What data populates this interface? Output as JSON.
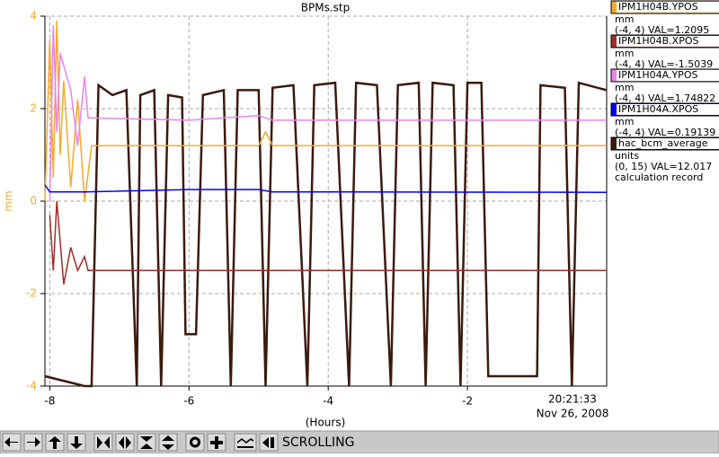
{
  "chart_data": {
    "type": "line",
    "title": "BPMs.stp",
    "xlabel": "(Hours)",
    "ylabel": "mm",
    "time_label": "20:21:33",
    "date_label": "Nov 26, 2008",
    "xlim": [
      -8.07,
      0
    ],
    "xticks": [
      -8,
      -6,
      -4,
      -2
    ],
    "ylim": [
      -4,
      4
    ],
    "yticks": [
      -4,
      -2,
      0,
      2,
      4
    ],
    "y2lim": [
      0,
      15
    ],
    "grid": true,
    "series": [
      {
        "name": "IPM1H04B.YPOS",
        "units": "mm",
        "info": "(-4, 4) VAL=1.2095",
        "color": "#f7a92a",
        "x": [
          -8.07,
          -8.0,
          -7.95,
          -7.9,
          -7.85,
          -7.8,
          -7.7,
          -7.6,
          -7.5,
          -7.4,
          -5.0,
          -4.9,
          -4.8,
          0
        ],
        "values": [
          0,
          3.5,
          0.5,
          3.9,
          1,
          2.6,
          0.3,
          2.2,
          0,
          1.2,
          1.2,
          1.5,
          1.2,
          1.2
        ]
      },
      {
        "name": "IPM1H04B.XPOS",
        "units": "mm",
        "info": "(-4, 4) VAL=-1.5039",
        "color": "#a52a2a",
        "x": [
          -8.0,
          -7.95,
          -7.9,
          -7.8,
          -7.7,
          -7.6,
          -7.5,
          -7.45,
          0
        ],
        "values": [
          -0.3,
          -1.5,
          0,
          -1.8,
          -1,
          -1.5,
          -1.2,
          -1.5,
          -1.5
        ]
      },
      {
        "name": "IPM1H04A.YPOS",
        "units": "mm",
        "info": "(-4, 4) VAL=1.74822",
        "color": "#ee82ee",
        "x": [
          -8.0,
          -7.95,
          -7.9,
          -7.85,
          -7.7,
          -7.6,
          -7.5,
          -7.45,
          -6.0,
          -5.0,
          -4.8,
          0
        ],
        "values": [
          0,
          3.8,
          1.5,
          3.2,
          2.4,
          1.2,
          2.7,
          1.8,
          1.75,
          1.85,
          1.75,
          1.75
        ]
      },
      {
        "name": "IPM1H04A.XPOS",
        "units": "mm",
        "info": "(-4, 4) VAL=0.19139",
        "color": "#0000ff",
        "x": [
          -8.07,
          -8.0,
          -7.5,
          -6.0,
          -5.0,
          -4.8,
          0
        ],
        "values": [
          0.35,
          0.2,
          0.2,
          0.25,
          0.25,
          0.2,
          0.19
        ]
      },
      {
        "name": "hac_bcm_average",
        "units": "units",
        "info": "(0, 15) VAL=12.017",
        "note": "calculation record",
        "color": "#3b1a0e",
        "axis": "y2",
        "x": [
          -8.07,
          -7.5,
          -7.4,
          -7.3,
          -7.1,
          -6.9,
          -6.75,
          -6.7,
          -6.5,
          -6.4,
          -6.3,
          -6.1,
          -6.05,
          -5.9,
          -5.8,
          -5.5,
          -5.4,
          -5.3,
          -5.0,
          -4.9,
          -4.8,
          -4.5,
          -4.3,
          -4.2,
          -3.9,
          -3.7,
          -3.6,
          -3.3,
          -3.1,
          -3.0,
          -2.7,
          -2.6,
          -2.5,
          -2.2,
          -2.1,
          -2.0,
          -1.8,
          -1.7,
          -1.0,
          -0.95,
          -0.6,
          -0.5,
          -0.4,
          0
        ],
        "values": [
          0.4,
          0,
          0,
          12.2,
          11.8,
          12,
          0,
          11.8,
          12,
          0,
          11.8,
          11.7,
          2.1,
          2.1,
          11.8,
          12,
          0,
          12,
          12,
          0,
          12.1,
          12.2,
          0,
          12.2,
          12.3,
          0,
          12.3,
          12.2,
          0,
          12.2,
          12.3,
          0,
          12.3,
          12.2,
          0,
          12.3,
          12.3,
          0.4,
          0.4,
          12.2,
          12.1,
          0,
          12.3,
          12.0
        ]
      }
    ]
  },
  "toolbar": {
    "status": "SCROLLING"
  }
}
